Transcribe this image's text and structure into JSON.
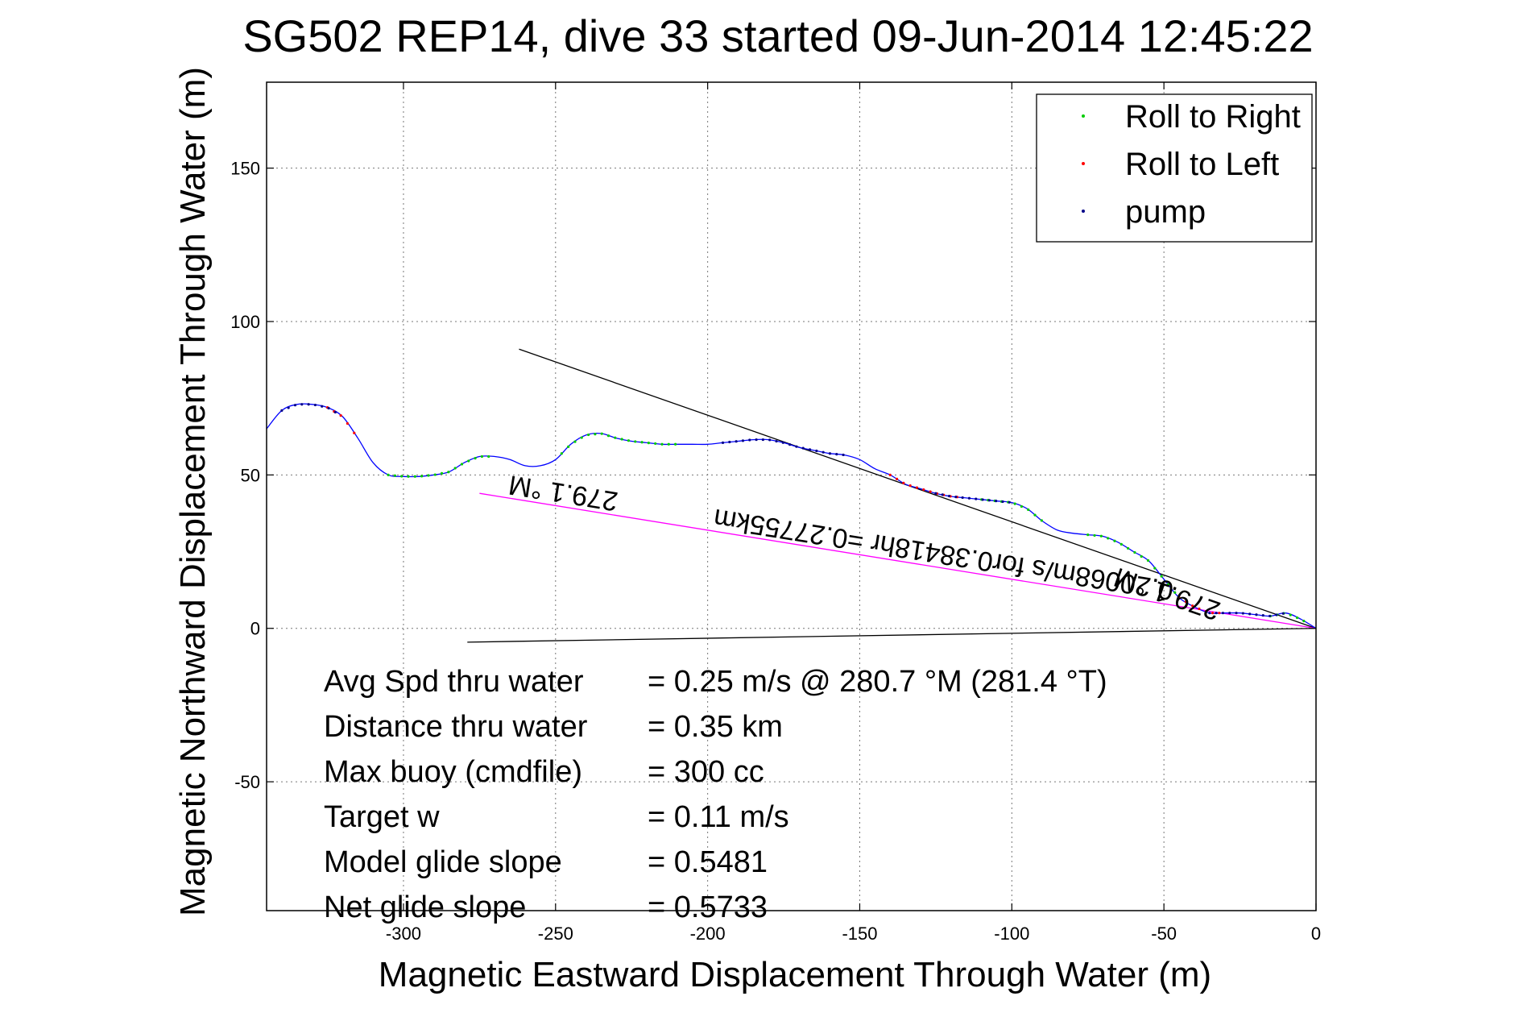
{
  "chart_data": {
    "type": "line",
    "title": "SG502 REP14, dive 33 started 09-Jun-2014 12:45:22",
    "xlabel": "Magnetic Eastward Displacement Through Water (m)",
    "ylabel": "Magnetic Northward Displacement Through Water (m)",
    "xlim": [
      -345,
      0
    ],
    "ylim": [
      -92,
      178
    ],
    "xticks": [
      -300,
      -250,
      -200,
      -150,
      -100,
      -50,
      0
    ],
    "yticks": [
      -50,
      0,
      50,
      100,
      150
    ],
    "grid": true,
    "legend": {
      "placement": "top-right",
      "entries": [
        {
          "name": "Roll to Right",
          "color": "#00cc00"
        },
        {
          "name": "Roll to Left",
          "color": "#ff0000"
        },
        {
          "name": "pump",
          "color": "#000088"
        }
      ]
    },
    "track": {
      "color": "#0000ff",
      "x": [
        -345,
        -340,
        -335,
        -330,
        -325,
        -320,
        -315,
        -310,
        -305,
        -300,
        -295,
        -290,
        -285,
        -280,
        -275,
        -270,
        -265,
        -260,
        -255,
        -250,
        -245,
        -240,
        -235,
        -230,
        -225,
        -220,
        -215,
        -210,
        -205,
        -200,
        -195,
        -190,
        -185,
        -180,
        -175,
        -170,
        -165,
        -160,
        -155,
        -150,
        -145,
        -140,
        -135,
        -130,
        -125,
        -120,
        -115,
        -110,
        -105,
        -100,
        -95,
        -90,
        -85,
        -80,
        -75,
        -70,
        -65,
        -60,
        -55,
        -50,
        -45,
        -40,
        -35,
        -30,
        -25,
        -20,
        -15,
        -10,
        -5,
        0
      ],
      "y": [
        65,
        71,
        73,
        73,
        72,
        69,
        62,
        54,
        50,
        49.5,
        49.5,
        50,
        51,
        54,
        56,
        56,
        55,
        53,
        53,
        55,
        60,
        63,
        63.5,
        62,
        61,
        60.5,
        60,
        60,
        60,
        60,
        60.5,
        61,
        61.5,
        61.5,
        60.5,
        59,
        58,
        57,
        56.5,
        55,
        52,
        50,
        47,
        45.5,
        44,
        43,
        42.5,
        42,
        41.5,
        41,
        39,
        35,
        32,
        31,
        30.5,
        30,
        28,
        25,
        22,
        16,
        10,
        7,
        5,
        5,
        5,
        4.5,
        4,
        5,
        3,
        0
      ]
    },
    "roll_right_segments": [
      [
        -305,
        -270
      ],
      [
        -248,
        -210
      ],
      [
        -110,
        -90
      ],
      [
        -75,
        -45
      ],
      [
        -15,
        -2
      ]
    ],
    "roll_left_segments": [
      [
        -325,
        -315
      ],
      [
        -140,
        -118
      ],
      [
        -45,
        -30
      ]
    ],
    "pump_segments": [
      [
        -340,
        -322
      ],
      [
        -195,
        -155
      ],
      [
        -125,
        -100
      ],
      [
        -35,
        -10
      ]
    ],
    "lines": [
      {
        "color": "#000000",
        "x": [
          -262,
          0
        ],
        "y": [
          91,
          0
        ]
      },
      {
        "color": "#000000",
        "x": [
          -279,
          0
        ],
        "y": [
          -4.5,
          0
        ]
      },
      {
        "color": "#ff00ff",
        "x": [
          -275,
          0
        ],
        "y": [
          44,
          0
        ]
      }
    ],
    "annotations": [
      {
        "text": "279.1 °M",
        "x": -247,
        "y": 47,
        "rotation": 189
      },
      {
        "text": "0.20068m/s for0.38418hr =0.27755km",
        "x": -122,
        "y": 27,
        "rotation": 189
      },
      {
        "text": "279.1 °M",
        "x": -48,
        "y": 14,
        "rotation": 199
      }
    ],
    "summary": [
      {
        "label": "Avg Spd thru water",
        "value": "=  0.25 m/s @ 280.7 °M (281.4 °T)"
      },
      {
        "label": "Distance thru water",
        "value": "=  0.35 km"
      },
      {
        "label": "Max buoy (cmdfile)",
        "value": "= 300 cc"
      },
      {
        "label": "Target w",
        "value": "= 0.11 m/s"
      },
      {
        "label": "Model glide slope",
        "value": "= 0.5481"
      },
      {
        "label": "Net glide slope",
        "value": "= 0.5733"
      }
    ]
  }
}
